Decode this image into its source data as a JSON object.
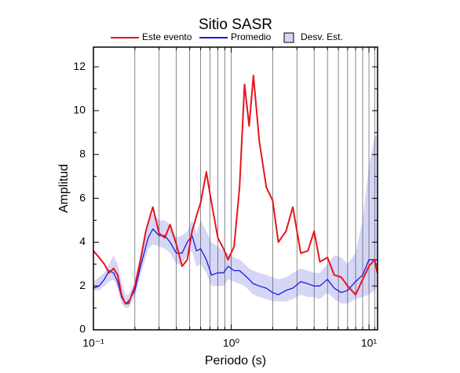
{
  "chart_data": {
    "type": "line",
    "title": "Sitio SASR",
    "x_label": "Periodo (s)",
    "y_label": "Amplitud",
    "x_scale": "log",
    "xlim": [
      0.1,
      11.55
    ],
    "ylim": [
      0,
      12.9
    ],
    "xticks": [
      {
        "value": 0.1,
        "label": "10⁻¹"
      },
      {
        "value": 1,
        "label": "10⁰"
      },
      {
        "value": 10,
        "label": "10¹"
      }
    ],
    "xminorticks": [
      0.2,
      0.3,
      0.4,
      0.5,
      0.6,
      0.7,
      0.8,
      0.9,
      2,
      3,
      4,
      5,
      6,
      7,
      8,
      9,
      11
    ],
    "yticks": [
      0,
      2,
      4,
      6,
      8,
      10,
      12
    ],
    "yminorticks": [
      1,
      3,
      5,
      7,
      9,
      11
    ],
    "xgrid": true,
    "x": [
      0.1,
      0.11,
      0.12,
      0.13,
      0.14,
      0.15,
      0.16,
      0.17,
      0.18,
      0.2,
      0.22,
      0.24,
      0.25,
      0.27,
      0.3,
      0.33,
      0.36,
      0.4,
      0.44,
      0.48,
      0.52,
      0.56,
      0.6,
      0.66,
      0.72,
      0.8,
      0.88,
      0.95,
      1.05,
      1.15,
      1.25,
      1.35,
      1.45,
      1.6,
      1.8,
      2.0,
      2.2,
      2.5,
      2.8,
      3.2,
      3.6,
      4.0,
      4.4,
      5.0,
      5.6,
      6.3,
      7.0,
      8.0,
      9.0,
      10,
      11,
      11.5
    ],
    "band": {
      "name": "Desv. Est.",
      "color": "#d6d6f7",
      "lower": [
        1.8,
        1.8,
        2.0,
        2.2,
        2.3,
        1.9,
        1.2,
        1.0,
        1.0,
        1.5,
        2.5,
        3.3,
        3.7,
        3.9,
        3.8,
        3.7,
        3.5,
        3.0,
        3.0,
        3.4,
        3.6,
        2.9,
        3.0,
        2.6,
        2.0,
        2.0,
        2.0,
        2.3,
        2.2,
        2.1,
        2.0,
        1.8,
        1.6,
        1.5,
        1.4,
        1.3,
        1.3,
        1.3,
        1.4,
        1.6,
        1.5,
        1.5,
        1.4,
        1.7,
        1.4,
        1.2,
        1.2,
        1.4,
        1.5,
        1.6,
        1.8,
        2.0
      ],
      "upper": [
        2.2,
        2.4,
        2.6,
        3.0,
        3.4,
        3.0,
        2.2,
        1.6,
        1.6,
        2.2,
        3.5,
        4.4,
        4.9,
        5.3,
        5.0,
        5.0,
        4.8,
        4.2,
        4.3,
        4.5,
        5.0,
        4.4,
        5.0,
        4.5,
        4.0,
        3.8,
        3.6,
        3.5,
        3.3,
        3.2,
        3.0,
        2.8,
        2.7,
        2.6,
        2.5,
        2.4,
        2.3,
        2.4,
        2.6,
        2.8,
        2.7,
        2.6,
        2.6,
        3.0,
        3.4,
        3.3,
        3.0,
        3.5,
        5.0,
        7.5,
        8.8,
        8.9
      ]
    },
    "series": [
      {
        "name": "Este evento",
        "color": "#e8141c",
        "values": [
          3.6,
          3.3,
          3.0,
          2.6,
          2.8,
          2.5,
          1.6,
          1.2,
          1.2,
          2.0,
          3.2,
          4.5,
          4.9,
          5.6,
          4.4,
          4.2,
          4.8,
          3.9,
          2.9,
          3.2,
          4.5,
          5.2,
          5.8,
          7.2,
          5.8,
          4.2,
          3.7,
          3.2,
          3.8,
          6.5,
          11.2,
          9.3,
          11.6,
          8.6,
          6.5,
          5.9,
          4.0,
          4.5,
          5.6,
          3.5,
          3.6,
          4.5,
          3.1,
          3.3,
          2.5,
          2.4,
          2.0,
          1.6,
          2.3,
          2.9,
          3.2,
          2.6
        ]
      },
      {
        "name": "Promedio",
        "color": "#1a1ae0",
        "values": [
          1.9,
          2.0,
          2.3,
          2.7,
          2.6,
          2.2,
          1.5,
          1.2,
          1.3,
          1.8,
          2.9,
          3.8,
          4.2,
          4.6,
          4.3,
          4.3,
          4.0,
          3.5,
          3.5,
          4.0,
          4.3,
          3.6,
          3.7,
          3.2,
          2.5,
          2.6,
          2.6,
          2.9,
          2.7,
          2.7,
          2.5,
          2.3,
          2.1,
          2.0,
          1.9,
          1.7,
          1.6,
          1.8,
          1.9,
          2.2,
          2.1,
          2.0,
          2.0,
          2.3,
          1.9,
          1.7,
          1.8,
          2.2,
          2.5,
          3.2,
          3.2,
          3.2
        ]
      }
    ]
  }
}
